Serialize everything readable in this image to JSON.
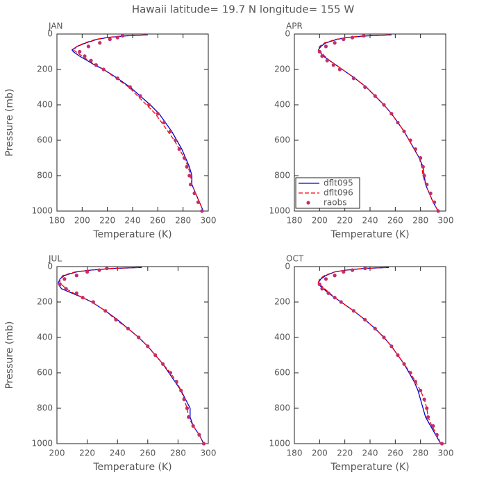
{
  "title": "Hawaii  latitude= 19.7 N longitude= 155 W",
  "chart_data": [
    {
      "type": "line",
      "title": "JAN",
      "x_label": "Temperature (K)",
      "y_label": "Pressure (mb)",
      "xlim": [
        180,
        300
      ],
      "xticks": [
        180,
        200,
        220,
        240,
        260,
        280,
        300
      ],
      "ylim": [
        1000,
        0
      ],
      "yticks": [
        0,
        200,
        400,
        600,
        800,
        1000
      ],
      "y": [
        5,
        10,
        20,
        30,
        50,
        70,
        90,
        100,
        125,
        150,
        175,
        200,
        250,
        300,
        350,
        400,
        450,
        500,
        550,
        600,
        650,
        700,
        750,
        800,
        850,
        900,
        950,
        1000
      ],
      "series": [
        {
          "name": "dflt095",
          "color": "#0000cc",
          "style": "solid",
          "x": [
            252,
            235,
            220,
            212,
            203,
            196,
            192,
            193,
            198,
            204,
            210,
            217,
            228,
            238,
            246,
            254,
            261,
            266,
            271,
            275,
            279,
            282,
            285,
            287,
            287,
            290,
            293,
            296
          ]
        },
        {
          "name": "dflt096",
          "color": "#ff0000",
          "style": "dashed",
          "x": [
            250,
            233,
            219,
            211,
            202,
            196,
            193,
            195,
            200,
            205,
            211,
            217,
            227,
            237,
            244,
            251,
            258,
            263,
            268,
            273,
            277,
            281,
            284,
            286,
            287,
            290,
            293,
            296
          ]
        },
        {
          "name": "raobs",
          "color": "#c0306a",
          "style": "marker",
          "x": [
            null,
            232,
            228,
            222,
            214,
            205,
            null,
            198,
            202,
            207,
            211,
            217,
            228,
            238,
            246,
            253,
            260,
            265,
            270,
            274,
            277,
            281,
            283,
            285,
            286,
            289,
            292,
            295
          ]
        }
      ]
    },
    {
      "type": "line",
      "title": "APR",
      "x_label": "Temperature (K)",
      "xlim": [
        180,
        300
      ],
      "xticks": [
        180,
        200,
        220,
        240,
        260,
        280,
        300
      ],
      "ylim": [
        1000,
        0
      ],
      "yticks": [
        0,
        200,
        400,
        600,
        800,
        1000
      ],
      "legend": "lower left",
      "y": [
        5,
        10,
        20,
        30,
        50,
        70,
        90,
        100,
        125,
        150,
        175,
        200,
        250,
        300,
        350,
        400,
        450,
        500,
        550,
        600,
        650,
        700,
        750,
        800,
        850,
        900,
        950,
        1000
      ],
      "series": [
        {
          "name": "dflt095",
          "color": "#0000cc",
          "style": "solid",
          "x": [
            257,
            238,
            222,
            214,
            205,
            201,
            199,
            200,
            203,
            208,
            213,
            218,
            228,
            237,
            244,
            251,
            257,
            262,
            267,
            271,
            275,
            279,
            282,
            283,
            284,
            287,
            290,
            294
          ]
        },
        {
          "name": "dflt096",
          "color": "#ff0000",
          "style": "dashed",
          "x": [
            255,
            236,
            221,
            213,
            204,
            200,
            199,
            201,
            204,
            208,
            213,
            218,
            228,
            237,
            244,
            251,
            257,
            262,
            267,
            271,
            275,
            279,
            281,
            282,
            284,
            287,
            290,
            294
          ]
        },
        {
          "name": "raobs",
          "color": "#c0306a",
          "style": "marker",
          "x": [
            null,
            235,
            226,
            219,
            212,
            205,
            null,
            200,
            202,
            206,
            211,
            216,
            227,
            236,
            244,
            251,
            257,
            262,
            267,
            272,
            276,
            280,
            282,
            283,
            285,
            288,
            291,
            294
          ]
        }
      ]
    },
    {
      "type": "line",
      "title": "JUL",
      "x_label": "Temperature (K)",
      "y_label": "Pressure (mb)",
      "xlim": [
        200,
        300
      ],
      "xticks": [
        200,
        220,
        240,
        260,
        280,
        300
      ],
      "ylim": [
        1000,
        0
      ],
      "yticks": [
        0,
        200,
        400,
        600,
        800,
        1000
      ],
      "y": [
        5,
        10,
        20,
        30,
        50,
        70,
        90,
        100,
        125,
        150,
        175,
        200,
        250,
        300,
        350,
        400,
        450,
        500,
        550,
        600,
        650,
        700,
        750,
        800,
        850,
        900,
        950,
        1000
      ],
      "series": [
        {
          "name": "dflt095",
          "color": "#0000cc",
          "style": "solid",
          "x": [
            256,
            238,
            222,
            213,
            205,
            202,
            201,
            201,
            203,
            210,
            217,
            223,
            232,
            240,
            247,
            254,
            260,
            265,
            270,
            274,
            278,
            282,
            285,
            288,
            288,
            290,
            294,
            297
          ]
        },
        {
          "name": "dflt096",
          "color": "#ff0000",
          "style": "dashed",
          "x": [
            254,
            236,
            221,
            212,
            204,
            202,
            202,
            203,
            206,
            211,
            217,
            223,
            232,
            239,
            247,
            254,
            260,
            265,
            270,
            275,
            279,
            282,
            284,
            286,
            287,
            290,
            294,
            297
          ]
        },
        {
          "name": "raobs",
          "color": "#c0306a",
          "style": "marker",
          "x": [
            null,
            233,
            228,
            220,
            213,
            205,
            null,
            202,
            206,
            213,
            217,
            224,
            232,
            239,
            247,
            254,
            260,
            265,
            270,
            275,
            279,
            282,
            284,
            286,
            287,
            290,
            294,
            297
          ]
        }
      ]
    },
    {
      "type": "line",
      "title": "OCT",
      "x_label": "Temperature (K)",
      "xlim": [
        180,
        300
      ],
      "xticks": [
        180,
        200,
        220,
        240,
        260,
        280,
        300
      ],
      "ylim": [
        1000,
        0
      ],
      "yticks": [
        0,
        200,
        400,
        600,
        800,
        1000
      ],
      "y": [
        5,
        10,
        20,
        30,
        50,
        70,
        90,
        100,
        125,
        150,
        175,
        200,
        250,
        300,
        350,
        400,
        450,
        500,
        550,
        600,
        650,
        700,
        750,
        800,
        850,
        900,
        950,
        1000
      ],
      "series": [
        {
          "name": "dflt095",
          "color": "#0000cc",
          "style": "solid",
          "x": [
            255,
            236,
            221,
            212,
            205,
            201,
            199,
            199,
            203,
            207,
            212,
            217,
            227,
            236,
            244,
            251,
            257,
            262,
            267,
            271,
            275,
            278,
            280,
            282,
            284,
            288,
            292,
            296
          ]
        },
        {
          "name": "dflt096",
          "color": "#ff0000",
          "style": "dashed",
          "x": [
            253,
            235,
            220,
            212,
            204,
            200,
            199,
            200,
            204,
            208,
            212,
            217,
            227,
            236,
            244,
            251,
            257,
            262,
            267,
            272,
            276,
            280,
            283,
            285,
            286,
            289,
            293,
            296
          ]
        },
        {
          "name": "raobs",
          "color": "#c0306a",
          "style": "marker",
          "x": [
            null,
            236,
            226,
            219,
            212,
            205,
            null,
            200,
            202,
            207,
            212,
            217,
            227,
            236,
            244,
            251,
            257,
            262,
            267,
            272,
            276,
            280,
            283,
            285,
            286,
            290,
            293,
            297
          ]
        }
      ]
    }
  ]
}
